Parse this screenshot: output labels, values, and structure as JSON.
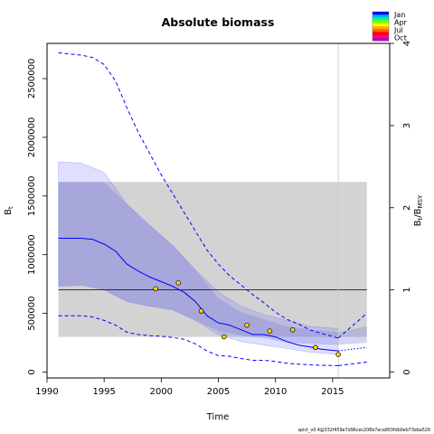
{
  "chart_data": {
    "type": "line",
    "title": "Absolute biomass",
    "xlabel": "Time",
    "ylabel_left": "B",
    "ylabel_left_sub": "t",
    "ylabel_right": "B",
    "ylabel_right_sub1": "t",
    "ylabel_right_mid": "/B",
    "ylabel_right_sub2": "MSY",
    "xlim": [
      1990,
      2020
    ],
    "ylim": [
      -50000,
      2800000
    ],
    "right_axis_ratio": 700000,
    "x_ticks": [
      1990,
      1995,
      2000,
      2005,
      2010,
      2015
    ],
    "y_ticks": [
      0,
      500000,
      1000000,
      1500000,
      2000000,
      2500000
    ],
    "y2_ticks": [
      0,
      1,
      2,
      3,
      4
    ],
    "footer": "spict_v0.4@332f459e7d96cec206b7aca803fdb0eb73eba526",
    "grey_rect": {
      "x0": 1991,
      "x1": 2018,
      "y0": 300000,
      "y1": 1620000
    },
    "bmsy_line": 700000,
    "vline_x": 2015.5,
    "ci_band_outer": {
      "x": [
        1991,
        1993,
        1995,
        1997,
        1999,
        2001,
        2003,
        2005,
        2007,
        2009,
        2011,
        2013,
        2015.5
      ],
      "lower": [
        730000,
        740000,
        700000,
        600000,
        560000,
        530000,
        440000,
        320000,
        260000,
        230000,
        200000,
        170000,
        150000
      ],
      "upper": [
        1790000,
        1780000,
        1700000,
        1430000,
        1250000,
        1080000,
        870000,
        680000,
        560000,
        490000,
        440000,
        390000,
        370000
      ]
    },
    "ci_band_inner": {
      "x": [
        1991,
        1993,
        1995,
        1997,
        1999,
        2001,
        2003,
        2005,
        2007,
        2009,
        2011,
        2013,
        2015.5,
        2018
      ],
      "lower": [
        730000,
        740000,
        700000,
        600000,
        560000,
        530000,
        440000,
        350000,
        310000,
        290000,
        250000,
        240000,
        230000,
        250000
      ],
      "upper": [
        1620000,
        1620000,
        1620000,
        1430000,
        1250000,
        1080000,
        870000,
        630000,
        510000,
        450000,
        390000,
        360000,
        340000,
        390000
      ]
    },
    "series": [
      {
        "name": "B",
        "style": "solid",
        "color": "#0000ff",
        "x": [
          1991,
          1993,
          1994,
          1995,
          1996,
          1997,
          1998,
          1999,
          2000,
          2001,
          2002,
          2003,
          2004,
          2005,
          2006,
          2007,
          2008,
          2009,
          2010,
          2011,
          2012,
          2013,
          2014,
          2015.5
        ],
        "values": [
          1140000,
          1140000,
          1130000,
          1090000,
          1030000,
          920000,
          860000,
          810000,
          770000,
          730000,
          680000,
          600000,
          480000,
          420000,
          400000,
          360000,
          320000,
          320000,
          300000,
          260000,
          230000,
          215000,
          195000,
          180000
        ]
      },
      {
        "name": "B upper CI",
        "style": "dashed",
        "color": "#0000ff",
        "x": [
          1991,
          1993,
          1994,
          1995,
          1996,
          1997,
          1998,
          1999,
          2000,
          2001,
          2002,
          2003,
          2004,
          2005,
          2006,
          2007,
          2008,
          2009,
          2010,
          2011,
          2012,
          2013,
          2014,
          2015.5
        ],
        "values": [
          2720000,
          2700000,
          2680000,
          2620000,
          2480000,
          2250000,
          2040000,
          1860000,
          1680000,
          1520000,
          1360000,
          1200000,
          1040000,
          920000,
          820000,
          740000,
          660000,
          590000,
          510000,
          450000,
          410000,
          360000,
          330000,
          290000
        ]
      },
      {
        "name": "B lower CI",
        "style": "dashed",
        "color": "#0000ff",
        "x": [
          1991,
          1993,
          1994,
          1995,
          1996,
          1997,
          1998,
          1999,
          2000,
          2001,
          2002,
          2003,
          2004,
          2005,
          2006,
          2007,
          2008,
          2009,
          2010,
          2011,
          2012,
          2013,
          2014,
          2015.5
        ],
        "values": [
          480000,
          480000,
          470000,
          440000,
          400000,
          340000,
          320000,
          310000,
          305000,
          295000,
          280000,
          240000,
          180000,
          140000,
          135000,
          115000,
          100000,
          100000,
          90000,
          75000,
          68000,
          62000,
          58000,
          55000
        ]
      },
      {
        "name": "B forecast",
        "style": "dotted",
        "color": "#0000ff",
        "x": [
          2015.5,
          2018
        ],
        "values": [
          180000,
          210000
        ]
      },
      {
        "name": "B forecast upper",
        "style": "dashed",
        "color": "#0000ff",
        "x": [
          2015.5,
          2018
        ],
        "values": [
          290000,
          500000
        ]
      },
      {
        "name": "B forecast lower",
        "style": "dashed",
        "color": "#0000ff",
        "x": [
          2015.5,
          2018
        ],
        "values": [
          55000,
          85000
        ]
      }
    ],
    "points": {
      "x": [
        1999.5,
        2001.5,
        2003.5,
        2005.5,
        2007.5,
        2009.5,
        2011.5,
        2013.5,
        2015.5
      ],
      "y": [
        710000,
        760000,
        520000,
        300000,
        400000,
        350000,
        360000,
        210000,
        150000
      ],
      "fill": "#ffd700",
      "stroke": "#000000"
    },
    "legend": {
      "placement": "top-right",
      "labels": [
        "Jan",
        "Apr",
        "Jul",
        "Oct"
      ],
      "colors": [
        "#0000ff",
        "#00b0ff",
        "#00ff80",
        "#80ff00",
        "#ffff00",
        "#ffb000",
        "#ff6000",
        "#ff0000",
        "#ff0080",
        "#c000c0"
      ]
    }
  }
}
